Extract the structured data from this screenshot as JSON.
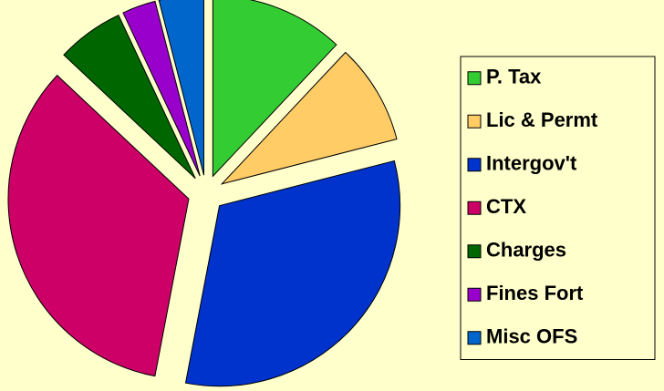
{
  "chart_data": {
    "type": "pie",
    "categories": [
      "P. Tax",
      "Lic & Permt",
      "Intergov't",
      "CTX",
      "Charges",
      "Fines Fort",
      "Misc OFS"
    ],
    "values": [
      12,
      9,
      32,
      34,
      6,
      3,
      4
    ],
    "colors": [
      "#33cc33",
      "#ffcc66",
      "#0033cc",
      "#cc0066",
      "#006600",
      "#9900cc",
      "#0066cc"
    ],
    "legend": "right"
  }
}
